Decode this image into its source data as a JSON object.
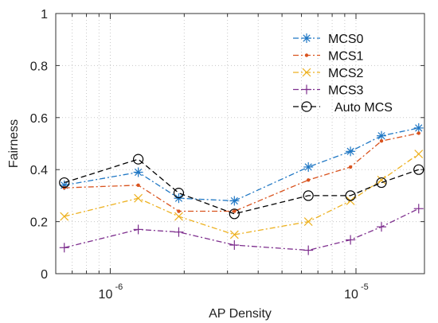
{
  "chart_data": {
    "type": "line",
    "xlabel": "AP Density",
    "ylabel": "Fairness",
    "xscale": "log",
    "xlim": [
      6e-07,
      1.9e-05
    ],
    "ylim": [
      0,
      1
    ],
    "yticks": [
      0,
      0.2,
      0.4,
      0.6,
      0.8,
      1
    ],
    "ytick_labels": [
      "0",
      "0.2",
      "0.4",
      "0.6",
      "0.8",
      "1"
    ],
    "xtick_labels": [
      {
        "value": 1e-06,
        "base": "10",
        "exp": "-6"
      },
      {
        "value": 1e-05,
        "base": "10",
        "exp": "-5"
      }
    ],
    "grid": true,
    "legend_position": "top-right",
    "x": [
      6.5e-07,
      1.3e-06,
      1.9e-06,
      3.2e-06,
      6.4e-06,
      9.5e-06,
      1.27e-05,
      1.8e-05
    ],
    "series": [
      {
        "name": "MCS0",
        "color": "#1f77c4",
        "dash": "7,3,2,3",
        "marker": "asterisk",
        "values": [
          0.34,
          0.39,
          0.29,
          0.28,
          0.41,
          0.47,
          0.53,
          0.56
        ]
      },
      {
        "name": "MCS1",
        "color": "#d9531e",
        "dash": "7,3,2,3",
        "marker": "dot",
        "values": [
          0.33,
          0.34,
          0.24,
          0.24,
          0.36,
          0.41,
          0.51,
          0.54
        ]
      },
      {
        "name": "MCS2",
        "color": "#edb120",
        "dash": "7,3,2,3",
        "marker": "x",
        "values": [
          0.22,
          0.29,
          0.22,
          0.15,
          0.2,
          0.28,
          0.36,
          0.46
        ]
      },
      {
        "name": "MCS3",
        "color": "#7e2f8e",
        "dash": "7,3,2,3",
        "marker": "plus",
        "values": [
          0.1,
          0.17,
          0.16,
          0.11,
          0.09,
          0.13,
          0.18,
          0.25
        ]
      },
      {
        "name": "Auto MCS",
        "color": "#000000",
        "dash": "7,4",
        "marker": "circle",
        "values": [
          0.35,
          0.44,
          0.31,
          0.23,
          0.3,
          0.3,
          0.35,
          0.4
        ]
      }
    ]
  }
}
